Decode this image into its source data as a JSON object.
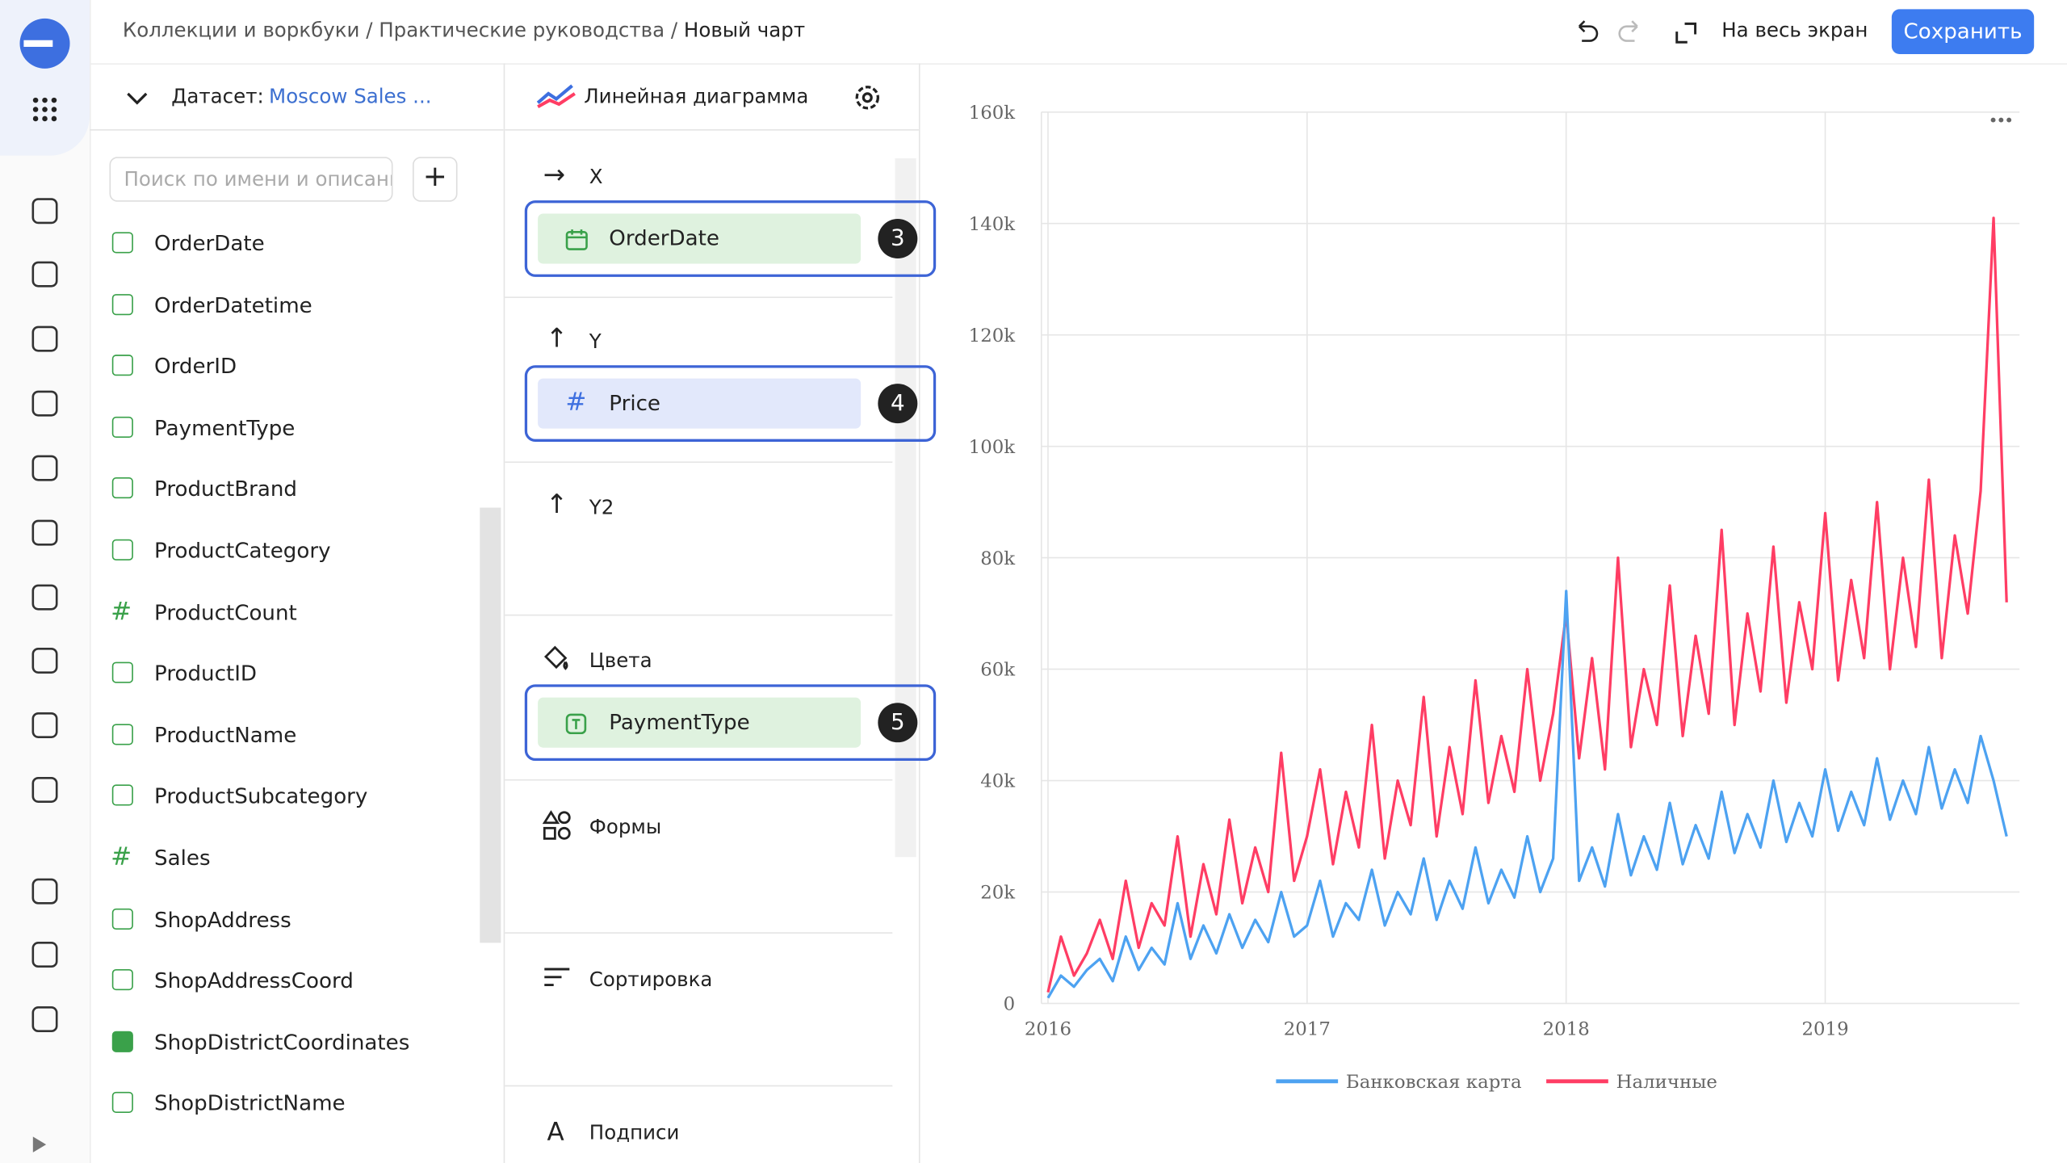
{
  "header": {
    "breadcrumbs": [
      "Коллекции и воркбуки",
      "Практические руководства",
      "Новый чарт"
    ],
    "fullscreen": "На весь экран",
    "save": "Сохранить"
  },
  "dataset": {
    "label": "Датасет:",
    "name": "Moscow Sales ...",
    "search_placeholder": "Поиск по имени и описани",
    "fields": [
      {
        "name": "OrderDate",
        "kind": "date"
      },
      {
        "name": "OrderDatetime",
        "kind": "date"
      },
      {
        "name": "OrderID",
        "kind": "text"
      },
      {
        "name": "PaymentType",
        "kind": "text"
      },
      {
        "name": "ProductBrand",
        "kind": "text"
      },
      {
        "name": "ProductCategory",
        "kind": "text"
      },
      {
        "name": "ProductCount",
        "kind": "number"
      },
      {
        "name": "ProductID",
        "kind": "text"
      },
      {
        "name": "ProductName",
        "kind": "text"
      },
      {
        "name": "ProductSubcategory",
        "kind": "text"
      },
      {
        "name": "Sales",
        "kind": "number"
      },
      {
        "name": "ShopAddress",
        "kind": "text"
      },
      {
        "name": "ShopAddressCoord",
        "kind": "text"
      },
      {
        "name": "ShopDistrictCoordinates",
        "kind": "geo"
      },
      {
        "name": "ShopDistrictName",
        "kind": "text"
      }
    ]
  },
  "chart_type": "Линейная диаграмма",
  "sections": {
    "x": {
      "label": "X",
      "field": "OrderDate",
      "badge": "3"
    },
    "y": {
      "label": "Y",
      "field": "Price",
      "badge": "4"
    },
    "y2": {
      "label": "Y2"
    },
    "colors": {
      "label": "Цвета",
      "field": "PaymentType",
      "badge": "5"
    },
    "shapes": {
      "label": "Формы"
    },
    "sort": {
      "label": "Сортировка"
    },
    "labels": {
      "label": "Подписи"
    }
  },
  "chart_data": {
    "type": "line",
    "grid": true,
    "legend": "bottom",
    "x": [
      2016,
      2016.05,
      2016.1,
      2016.15,
      2016.2,
      2016.25,
      2016.3,
      2016.35,
      2016.4,
      2016.45,
      2016.5,
      2016.55,
      2016.6,
      2016.65,
      2016.7,
      2016.75,
      2016.8,
      2016.85,
      2016.9,
      2016.95,
      2017,
      2017.05,
      2017.1,
      2017.15,
      2017.2,
      2017.25,
      2017.3,
      2017.35,
      2017.4,
      2017.45,
      2017.5,
      2017.55,
      2017.6,
      2017.65,
      2017.7,
      2017.75,
      2017.8,
      2017.85,
      2017.9,
      2017.95,
      2018,
      2018.05,
      2018.1,
      2018.15,
      2018.2,
      2018.25,
      2018.3,
      2018.35,
      2018.4,
      2018.45,
      2018.5,
      2018.55,
      2018.6,
      2018.65,
      2018.7,
      2018.75,
      2018.8,
      2018.85,
      2018.9,
      2018.95,
      2019,
      2019.05,
      2019.1,
      2019.15,
      2019.2,
      2019.25,
      2019.3,
      2019.35,
      2019.4,
      2019.45,
      2019.5,
      2019.55,
      2019.6,
      2019.65,
      2019.7
    ],
    "xlim": [
      2016,
      2019.75
    ],
    "xticks": [
      2016,
      2017,
      2018,
      2019
    ],
    "ylim": [
      0,
      160000
    ],
    "yticks": [
      0,
      {
        "value": 20000,
        "label": "20k"
      },
      {
        "value": 40000,
        "label": "40k"
      },
      {
        "value": 60000,
        "label": "60k"
      },
      {
        "value": 80000,
        "label": "80k"
      },
      {
        "value": 100000,
        "label": "100k"
      },
      {
        "value": 120000,
        "label": "120k"
      },
      {
        "value": 140000,
        "label": "140k"
      },
      {
        "value": 160000,
        "label": "160k"
      }
    ],
    "series": [
      {
        "name": "Наличные",
        "color": "#ff3d64",
        "values": [
          2000,
          12000,
          5000,
          9000,
          15000,
          8000,
          22000,
          10000,
          18000,
          14000,
          30000,
          12000,
          25000,
          16000,
          33000,
          18000,
          28000,
          20000,
          45000,
          22000,
          30000,
          42000,
          25000,
          38000,
          28000,
          50000,
          26000,
          40000,
          32000,
          55000,
          30000,
          46000,
          34000,
          58000,
          36000,
          48000,
          38000,
          60000,
          40000,
          52000,
          70000,
          44000,
          62000,
          42000,
          80000,
          46000,
          60000,
          50000,
          75000,
          48000,
          66000,
          52000,
          85000,
          50000,
          70000,
          56000,
          82000,
          54000,
          72000,
          60000,
          88000,
          58000,
          76000,
          62000,
          90000,
          60000,
          80000,
          64000,
          94000,
          62000,
          84000,
          70000,
          92000,
          141000,
          72000
        ]
      },
      {
        "name": "Банковская карта",
        "color": "#4da2f1",
        "values": [
          1000,
          5000,
          3000,
          6000,
          8000,
          4000,
          12000,
          6000,
          10000,
          7000,
          18000,
          8000,
          14000,
          9000,
          16000,
          10000,
          15000,
          11000,
          20000,
          12000,
          14000,
          22000,
          12000,
          18000,
          15000,
          24000,
          14000,
          20000,
          16000,
          26000,
          15000,
          22000,
          17000,
          28000,
          18000,
          24000,
          19000,
          30000,
          20000,
          26000,
          74000,
          22000,
          28000,
          21000,
          34000,
          23000,
          30000,
          24000,
          36000,
          25000,
          32000,
          26000,
          38000,
          27000,
          34000,
          28000,
          40000,
          29000,
          36000,
          30000,
          42000,
          31000,
          38000,
          32000,
          44000,
          33000,
          40000,
          34000,
          46000,
          35000,
          42000,
          36000,
          48000,
          40000,
          30000
        ]
      }
    ]
  }
}
